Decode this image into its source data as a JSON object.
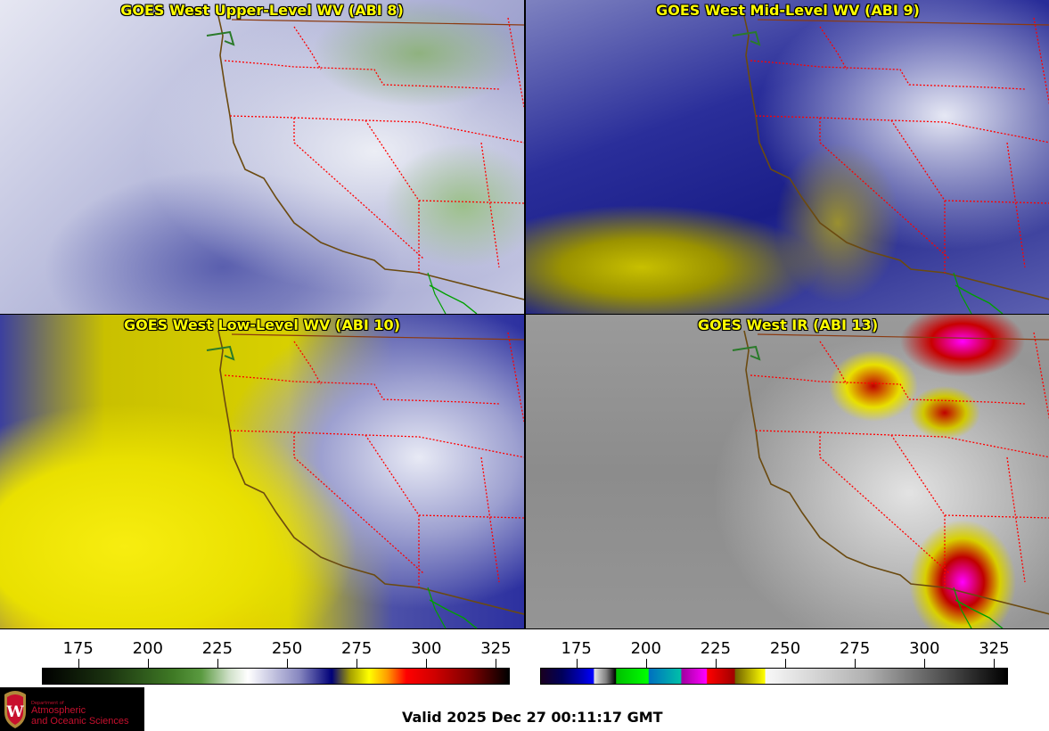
{
  "panels": [
    {
      "title": "GOES West Upper-Level WV (ABI 8)"
    },
    {
      "title": "GOES West Mid-Level WV (ABI 9)"
    },
    {
      "title": "GOES West Low-Level WV (ABI 10)"
    },
    {
      "title": "GOES West IR (ABI 13)"
    }
  ],
  "colorbars": [
    {
      "name": "water-vapor",
      "range_k": [
        162,
        330
      ],
      "ticks": [
        "175",
        "200",
        "225",
        "250",
        "275",
        "300",
        "325"
      ]
    },
    {
      "name": "infrared",
      "range_k": [
        162,
        330
      ],
      "ticks": [
        "175",
        "200",
        "225",
        "250",
        "275",
        "300",
        "325"
      ]
    }
  ],
  "logo": {
    "line1": "Department of",
    "line2": "Atmospheric",
    "line3": "and Oceanic Sciences",
    "seal_letter": "W"
  },
  "footer": {
    "valid": "Valid 2025 Dec 27 00:11:17 GMT"
  },
  "colors": {
    "title": "#ffff00",
    "state_borders": "#ff0000",
    "coastline": "#6b4a10",
    "mexico_border": "#00a000"
  }
}
